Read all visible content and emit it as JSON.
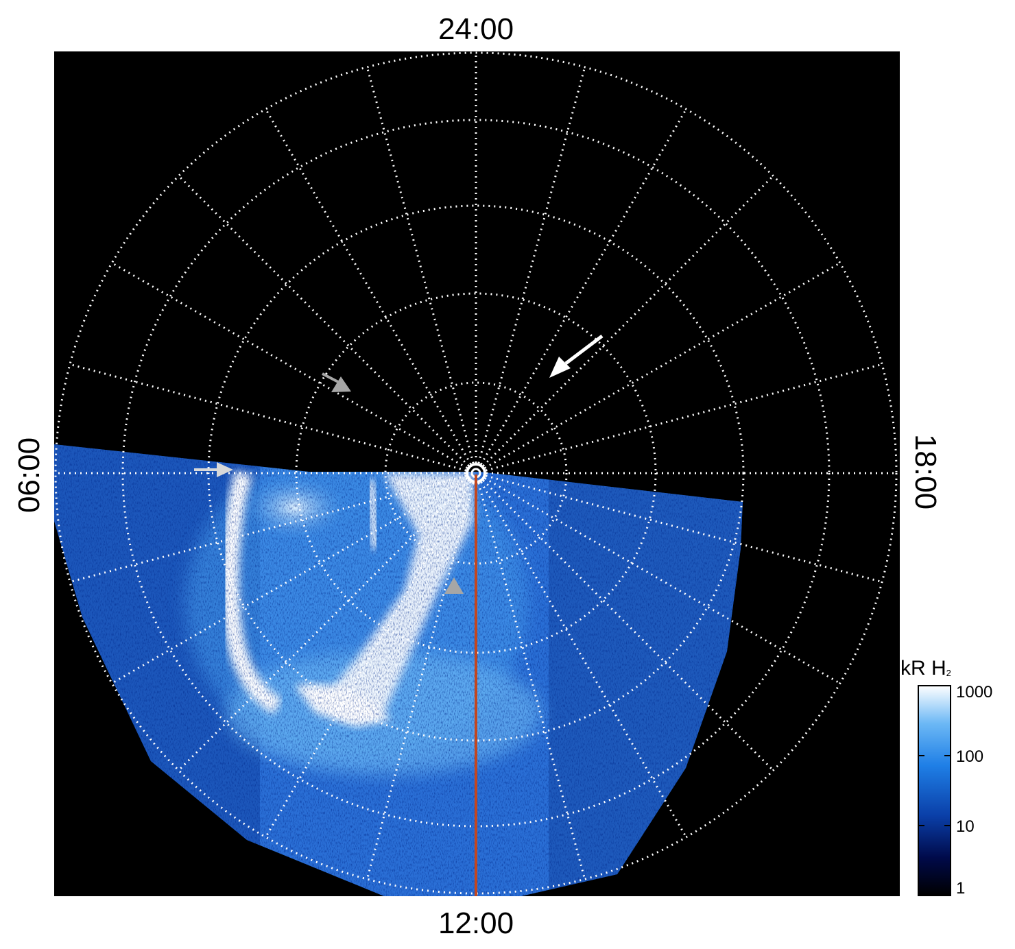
{
  "polar_map": {
    "local_time_labels": {
      "top": "24:00",
      "bottom": "12:00",
      "left": "06:00",
      "right": "18:00"
    },
    "background_color": "#000000",
    "grid_color": "#ffffff",
    "meridian_line_color": "#c2461f",
    "grid_circle_count": 5,
    "meridian_spoke_count": 24
  },
  "colorbar": {
    "title": "kR H",
    "title_subscript": "2",
    "scale": "log",
    "range": [
      1,
      1000
    ],
    "tick_labels": [
      "1000",
      "100",
      "10",
      "1"
    ],
    "colors": [
      "#000000",
      "#000a4a",
      "#0a3fa8",
      "#1f7fe6",
      "#6cb8f5",
      "#ffffff"
    ]
  },
  "annotations": [
    {
      "name": "white-arrow-dusk",
      "color": "#ffffff"
    },
    {
      "name": "gray-arrow-dawn-high",
      "color": "#a0a0a0"
    },
    {
      "name": "white-arrow-dawn-edge",
      "color": "#e0e0e0"
    },
    {
      "name": "gray-arrowhead-noon",
      "color": "#a0a0a0"
    }
  ]
}
